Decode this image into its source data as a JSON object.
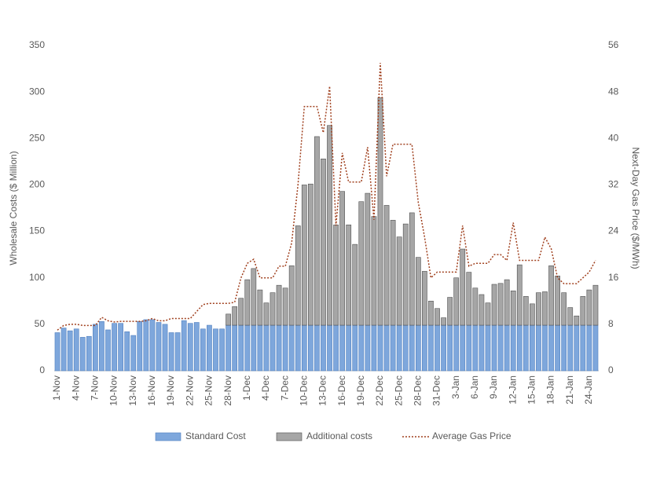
{
  "chart_data": {
    "type": "bar",
    "stacked": true,
    "y_label": "Wholesale Costs ($ Million)",
    "y2_label": "Next-Day Gas Price ($/MWh)",
    "categories": [
      "1-Nov",
      null,
      null,
      "4-Nov",
      null,
      null,
      "7-Nov",
      null,
      null,
      "10-Nov",
      null,
      null,
      "13-Nov",
      null,
      null,
      "16-Nov",
      null,
      null,
      "19-Nov",
      null,
      null,
      "22-Nov",
      null,
      null,
      "25-Nov",
      null,
      null,
      "28-Nov",
      null,
      null,
      "1-Dec",
      null,
      null,
      "4-Dec",
      null,
      null,
      "7-Dec",
      null,
      null,
      "10-Dec",
      null,
      null,
      "13-Dec",
      null,
      null,
      "16-Dec",
      null,
      null,
      "19-Dec",
      null,
      null,
      "22-Dec",
      null,
      null,
      "25-Dec",
      null,
      null,
      "28-Dec",
      null,
      null,
      "31-Dec",
      null,
      null,
      "3-Jan",
      null,
      null,
      "6-Jan",
      null,
      null,
      "9-Jan",
      null,
      null,
      "12-Jan",
      null,
      null,
      "15-Jan",
      null,
      null,
      "18-Jan",
      null,
      null,
      "21-Jan",
      null,
      null,
      "24-Jan",
      null
    ],
    "series": [
      {
        "name": "Standard Cost",
        "type": "bar",
        "color": "#7ea7dc",
        "stroke": "#4f7fbf",
        "values": [
          41,
          46,
          43,
          45,
          36,
          37,
          50,
          53,
          44,
          51,
          51,
          42,
          38,
          53,
          55,
          55,
          52,
          50,
          41,
          41,
          54,
          51,
          52,
          45,
          49,
          45,
          45,
          49,
          49,
          49,
          49,
          49,
          49,
          49,
          49,
          49,
          49,
          49,
          49,
          49,
          49,
          49,
          49,
          49,
          49,
          49,
          49,
          49,
          49,
          49,
          49,
          49,
          49,
          49,
          49,
          49,
          49,
          49,
          49,
          49,
          49,
          49,
          49,
          49,
          49,
          49,
          49,
          49,
          49,
          49,
          49,
          49,
          49,
          49,
          49,
          49,
          49,
          49,
          49,
          49,
          49,
          49,
          49,
          49,
          49,
          49
        ]
      },
      {
        "name": "Additional costs",
        "type": "bar",
        "color": "#a6a6a6",
        "stroke": "#505050",
        "values": [
          0,
          0,
          0,
          0,
          0,
          0,
          0,
          0,
          0,
          0,
          0,
          0,
          0,
          0,
          0,
          0,
          0,
          0,
          0,
          0,
          0,
          0,
          0,
          0,
          0,
          0,
          0,
          12,
          20,
          29,
          49,
          61,
          38,
          24,
          35,
          43,
          40,
          64,
          107,
          151,
          152,
          203,
          179,
          215,
          108,
          144,
          108,
          87,
          133,
          142,
          117,
          245,
          129,
          113,
          95,
          109,
          121,
          73,
          58,
          26,
          18,
          8,
          30,
          51,
          82,
          57,
          40,
          33,
          24,
          44,
          45,
          49,
          37,
          65,
          31,
          23,
          35,
          36,
          64,
          53,
          35,
          19,
          10,
          31,
          38,
          43
        ]
      },
      {
        "name": "Average Gas Price",
        "type": "line",
        "axis": "y2",
        "color": "#a0401e",
        "dash": "2,2",
        "values": [
          7,
          7.8,
          8,
          8,
          7.8,
          7.8,
          7.8,
          9.2,
          8.6,
          8.4,
          8.5,
          8.5,
          8.5,
          8.5,
          8.6,
          9,
          8.6,
          8.6,
          9,
          9,
          9,
          9,
          10.2,
          11.4,
          11.6,
          11.6,
          11.6,
          11.6,
          11.8,
          16,
          18.5,
          19.2,
          16,
          16,
          16,
          18,
          18,
          22,
          32,
          45.5,
          45.5,
          45.5,
          41,
          49,
          25,
          37.5,
          32.5,
          32.5,
          32.5,
          38.5,
          26,
          53,
          33.5,
          39,
          39,
          39,
          39,
          29,
          23,
          16,
          17,
          17,
          17,
          17,
          25,
          18,
          18.5,
          18.5,
          18.5,
          20,
          20,
          19,
          25.5,
          19,
          19,
          19,
          19,
          23,
          21,
          16,
          15,
          15,
          15,
          16,
          17,
          19
        ]
      }
    ],
    "ylim": [
      0,
      350
    ],
    "yticks": [
      0,
      50,
      100,
      150,
      200,
      250,
      300,
      350
    ],
    "y2lim": [
      0,
      56
    ],
    "y2ticks": [
      0,
      8,
      16,
      24,
      32,
      40,
      48,
      56
    ],
    "grid": false,
    "legend": "bottom"
  }
}
